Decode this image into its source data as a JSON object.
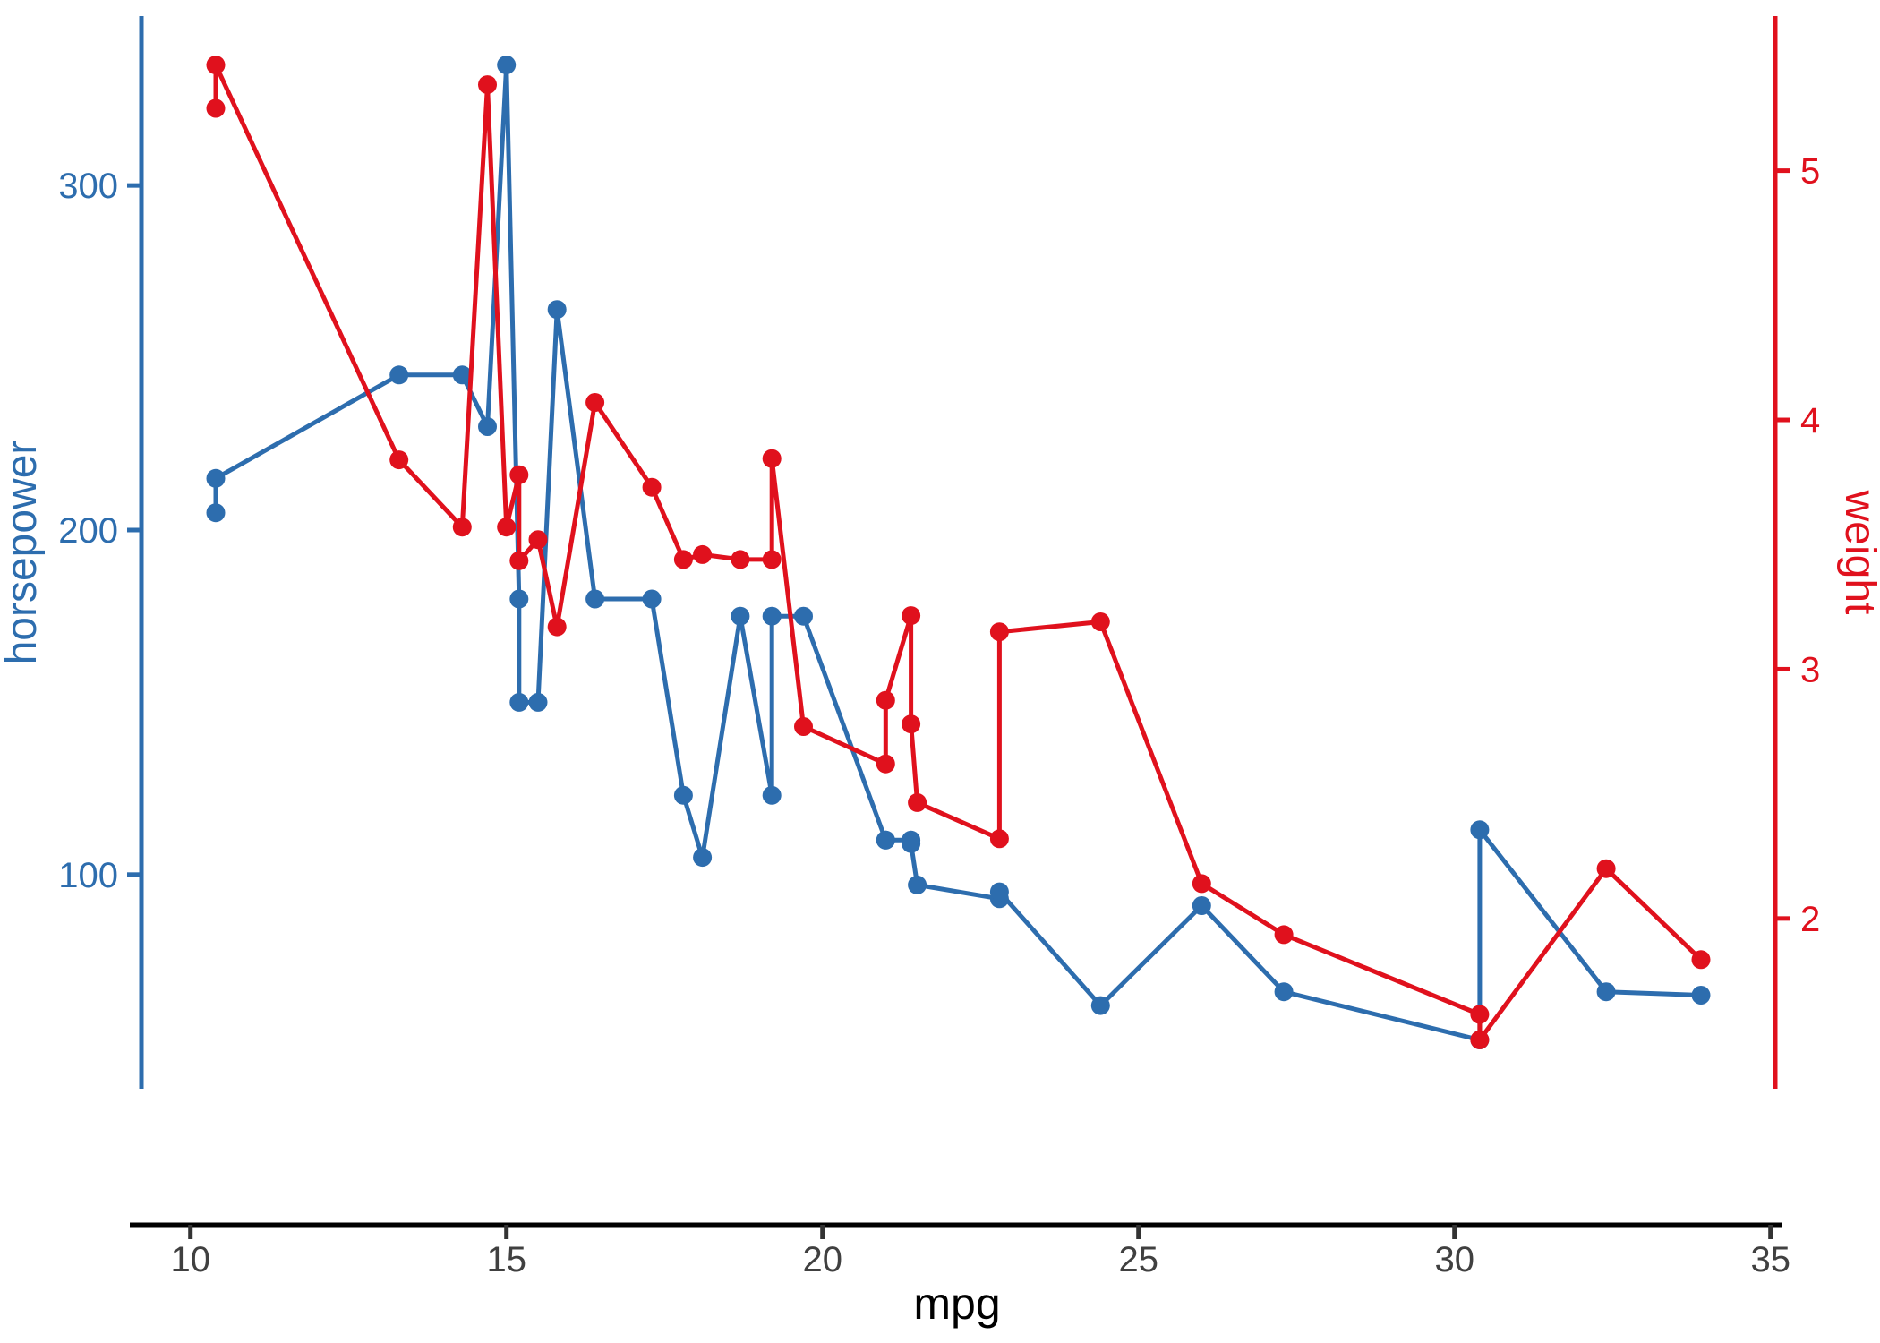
{
  "chart_data": {
    "type": "line",
    "title": "",
    "xlabel": "mpg",
    "ylabel_left": "horsepower",
    "ylabel_right": "weight",
    "legend": "none",
    "grid": "off",
    "x_ticks": [
      10,
      15,
      20,
      25,
      30,
      35
    ],
    "left_ticks": [
      100,
      200,
      300
    ],
    "right_ticks": [
      2,
      3,
      4,
      5
    ],
    "x_domain": [
      9.225,
      35.075
    ],
    "left_domain": [
      37.85,
      349.15
    ],
    "right_domain": [
      1.317,
      5.62
    ],
    "colors": {
      "horsepower": "#2D6DAE",
      "weight": "#E0111D",
      "x_axis_line": "#000000",
      "x_tick_text": "#404040",
      "x_title_text": "#000000"
    },
    "rows_columns": [
      "mpg",
      "horsepower",
      "weight"
    ],
    "rows": [
      [
        10.4,
        205,
        5.25
      ],
      [
        10.4,
        215,
        5.424
      ],
      [
        13.3,
        245,
        3.84
      ],
      [
        14.3,
        245,
        3.57
      ],
      [
        14.7,
        230,
        5.345
      ],
      [
        15.0,
        335,
        3.57
      ],
      [
        15.2,
        180,
        3.78
      ],
      [
        15.2,
        150,
        3.435
      ],
      [
        15.5,
        150,
        3.52
      ],
      [
        15.8,
        264,
        3.17
      ],
      [
        16.4,
        180,
        4.07
      ],
      [
        17.3,
        180,
        3.73
      ],
      [
        17.8,
        123,
        3.44
      ],
      [
        18.1,
        105,
        3.46
      ],
      [
        18.7,
        175,
        3.44
      ],
      [
        19.2,
        123,
        3.44
      ],
      [
        19.2,
        175,
        3.845
      ],
      [
        19.7,
        175,
        2.77
      ],
      [
        21.0,
        110,
        2.62
      ],
      [
        21.0,
        110,
        2.875
      ],
      [
        21.4,
        110,
        3.215
      ],
      [
        21.4,
        109,
        2.78
      ],
      [
        21.5,
        97,
        2.465
      ],
      [
        22.8,
        93,
        2.32
      ],
      [
        22.8,
        95,
        3.15
      ],
      [
        24.4,
        62,
        3.19
      ],
      [
        26.0,
        91,
        2.14
      ],
      [
        27.3,
        66,
        1.935
      ],
      [
        30.4,
        52,
        1.615
      ],
      [
        30.4,
        113,
        1.513
      ],
      [
        32.4,
        66,
        2.2
      ],
      [
        33.9,
        65,
        1.835
      ]
    ],
    "series": [
      {
        "name": "horsepower",
        "axis": "left",
        "column": 1
      },
      {
        "name": "weight",
        "axis": "right",
        "column": 2
      }
    ]
  }
}
